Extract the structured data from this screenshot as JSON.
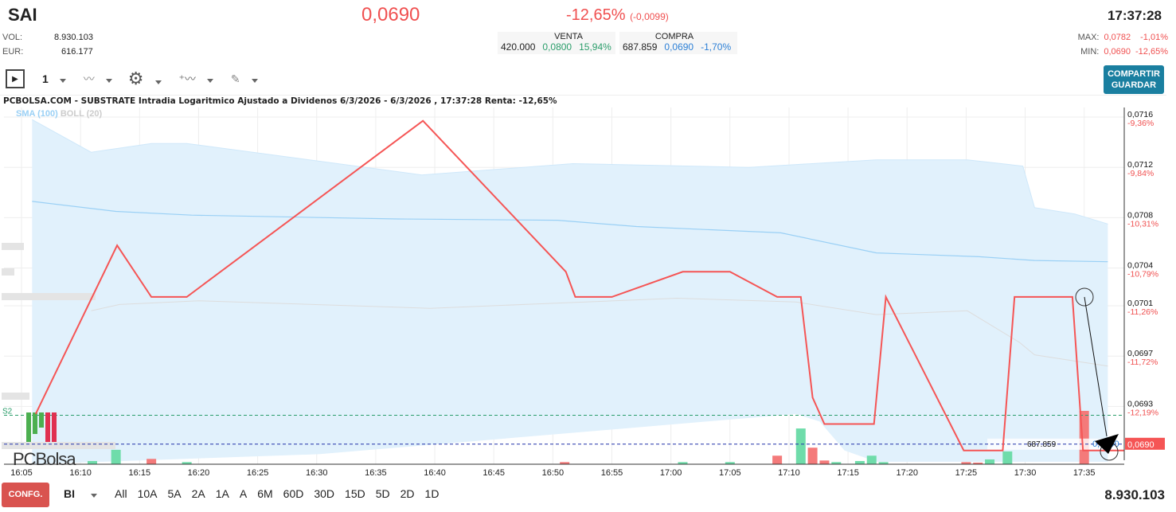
{
  "header": {
    "symbol": "SAI",
    "price": "0,0690",
    "change_pct": "-12,65%",
    "change_abs": "(-0,0099)",
    "time": "17:37:28"
  },
  "stats": {
    "vol_label": "VOL:",
    "vol": "8.930.103",
    "eur_label": "EUR:",
    "eur": "616.177",
    "max_label": "MAX:",
    "max": "0,0782",
    "max_pct": "-1,01%",
    "min_label": "MIN:",
    "min": "0,0690",
    "min_pct": "-12,65%"
  },
  "book": {
    "venta_label": "VENTA",
    "venta_qty": "420.000",
    "venta_price": "0,0800",
    "venta_pct": "15,94%",
    "compra_label": "COMPRA",
    "compra_qty": "687.859",
    "compra_price": "0,0690",
    "compra_pct": "-1,70%"
  },
  "toolbar": {
    "interval": "1",
    "share_label1": "COMPARTIR",
    "share_label2": "GUARDAR"
  },
  "footer": {
    "config": "CONFG.",
    "mode": "BI",
    "ranges": [
      "All",
      "10A",
      "5A",
      "2A",
      "1A",
      "A",
      "6M",
      "60D",
      "30D",
      "15D",
      "5D",
      "2D",
      "1D"
    ],
    "volume": "8.930.103"
  },
  "colors": {
    "up": "#f05050",
    "accent": "#1a7fa0",
    "band": "#e1f1fc"
  },
  "chart_data": {
    "type": "line",
    "title": "PCBOLSA.COM - SUBSTRATE Intradia Logaritmico Ajustado a Dividenos 6/3/2026 - 6/3/2026 , 17:37:28 Renta: -12,65%",
    "legend": [
      "SMA (100)",
      "BOLL (20)"
    ],
    "x_unit": "minutes after 16:05",
    "x_ticks": [
      "16:05",
      "16:10",
      "16:15",
      "16:20",
      "16:25",
      "16:30",
      "16:35",
      "16:40",
      "16:45",
      "16:50",
      "16:55",
      "17:00",
      "17:05",
      "17:10",
      "17:15",
      "17:20",
      "17:25",
      "17:30",
      "17:35"
    ],
    "y_ticks": [
      {
        "price": "0,0716",
        "pct": "-9,36%",
        "v": 0.0716
      },
      {
        "price": "0,0712",
        "pct": "-9,84%",
        "v": 0.0712
      },
      {
        "price": "0,0708",
        "pct": "-10,31%",
        "v": 0.0708
      },
      {
        "price": "0,0704",
        "pct": "-10,79%",
        "v": 0.0704
      },
      {
        "price": "0,0701",
        "pct": "-11,26%",
        "v": 0.0701
      },
      {
        "price": "0,0697",
        "pct": "-11,72%",
        "v": 0.0697
      },
      {
        "price": "0,0693",
        "pct": "-12,19%",
        "v": 0.0693
      }
    ],
    "ylim": [
      0.06885,
      0.07167
    ],
    "price": [
      [
        1.2,
        0.06924
      ],
      [
        8.1,
        0.07058
      ],
      [
        11,
        0.07017
      ],
      [
        14,
        0.07017
      ],
      [
        34,
        0.07157
      ],
      [
        46.1,
        0.07037
      ],
      [
        46.9,
        0.07017
      ],
      [
        50,
        0.07017
      ],
      [
        56,
        0.07037
      ],
      [
        60,
        0.07037
      ],
      [
        64,
        0.07017
      ],
      [
        66,
        0.07017
      ],
      [
        67,
        0.06937
      ],
      [
        68,
        0.06916
      ],
      [
        72.2,
        0.06916
      ],
      [
        73.2,
        0.07017
      ],
      [
        79.8,
        0.06895
      ],
      [
        83.1,
        0.06895
      ],
      [
        84.1,
        0.07017
      ],
      [
        89,
        0.07017
      ],
      [
        89.9,
        0.06895
      ],
      [
        93.4,
        0.06895
      ]
    ],
    "boll_upper": [
      [
        0.9,
        0.07158
      ],
      [
        5.9,
        0.07132
      ],
      [
        11,
        0.07139
      ],
      [
        14,
        0.07139
      ],
      [
        33.9,
        0.07114
      ],
      [
        46.7,
        0.07123
      ],
      [
        61.6,
        0.0712
      ],
      [
        72.4,
        0.07126
      ],
      [
        80.1,
        0.07126
      ],
      [
        84.8,
        0.07121
      ],
      [
        85.8,
        0.07088
      ],
      [
        89.2,
        0.07083
      ],
      [
        92,
        0.07075
      ]
    ],
    "boll_lower": [
      [
        0.9,
        0.06873
      ],
      [
        25.2,
        0.06892
      ],
      [
        65.6,
        0.06924
      ],
      [
        67.6,
        0.06918
      ],
      [
        69.7,
        0.06895
      ],
      [
        72.4,
        0.06886
      ],
      [
        92,
        0.06886
      ]
    ],
    "boll_mid": [
      [
        5.9,
        0.07006
      ],
      [
        8.3,
        0.07011
      ],
      [
        15,
        0.07014
      ],
      [
        34.6,
        0.07008
      ],
      [
        55.5,
        0.07016
      ],
      [
        65.6,
        0.07013
      ],
      [
        72.4,
        0.07003
      ],
      [
        80.1,
        0.07006
      ],
      [
        84.5,
        0.06981
      ],
      [
        85.8,
        0.06971
      ],
      [
        92,
        0.06962
      ]
    ],
    "sma100": [
      [
        0.9,
        0.07093
      ],
      [
        8,
        0.07085
      ],
      [
        14.4,
        0.07082
      ],
      [
        31.9,
        0.07079
      ],
      [
        45.4,
        0.07078
      ],
      [
        52.1,
        0.07073
      ],
      [
        64.3,
        0.07068
      ],
      [
        72.4,
        0.07052
      ],
      [
        81.1,
        0.07049
      ],
      [
        85.8,
        0.07046
      ],
      [
        92,
        0.07045
      ]
    ],
    "volume_relative": [
      [
        6,
        "up",
        6
      ],
      [
        8,
        "up",
        27
      ],
      [
        11,
        "down",
        10
      ],
      [
        14,
        "up",
        4
      ],
      [
        46,
        "down",
        4
      ],
      [
        56,
        "up",
        4
      ],
      [
        60,
        "up",
        4
      ],
      [
        64,
        "down",
        16
      ],
      [
        66,
        "up",
        67
      ],
      [
        67,
        "down",
        31
      ],
      [
        68,
        "down",
        7
      ],
      [
        69,
        "up",
        4
      ],
      [
        71,
        "up",
        6
      ],
      [
        72,
        "up",
        16
      ],
      [
        73,
        "up",
        4
      ],
      [
        80,
        "down",
        4
      ],
      [
        81,
        "down",
        3
      ],
      [
        82,
        "up",
        9
      ],
      [
        83.5,
        "up",
        24
      ],
      [
        90,
        "down",
        100
      ]
    ],
    "support": {
      "label": "S2",
      "v": 0.06923
    },
    "bid_line": {
      "label": "687.859",
      "v": 0.069,
      "price": "0,0690"
    },
    "last_price": "0,0690"
  }
}
